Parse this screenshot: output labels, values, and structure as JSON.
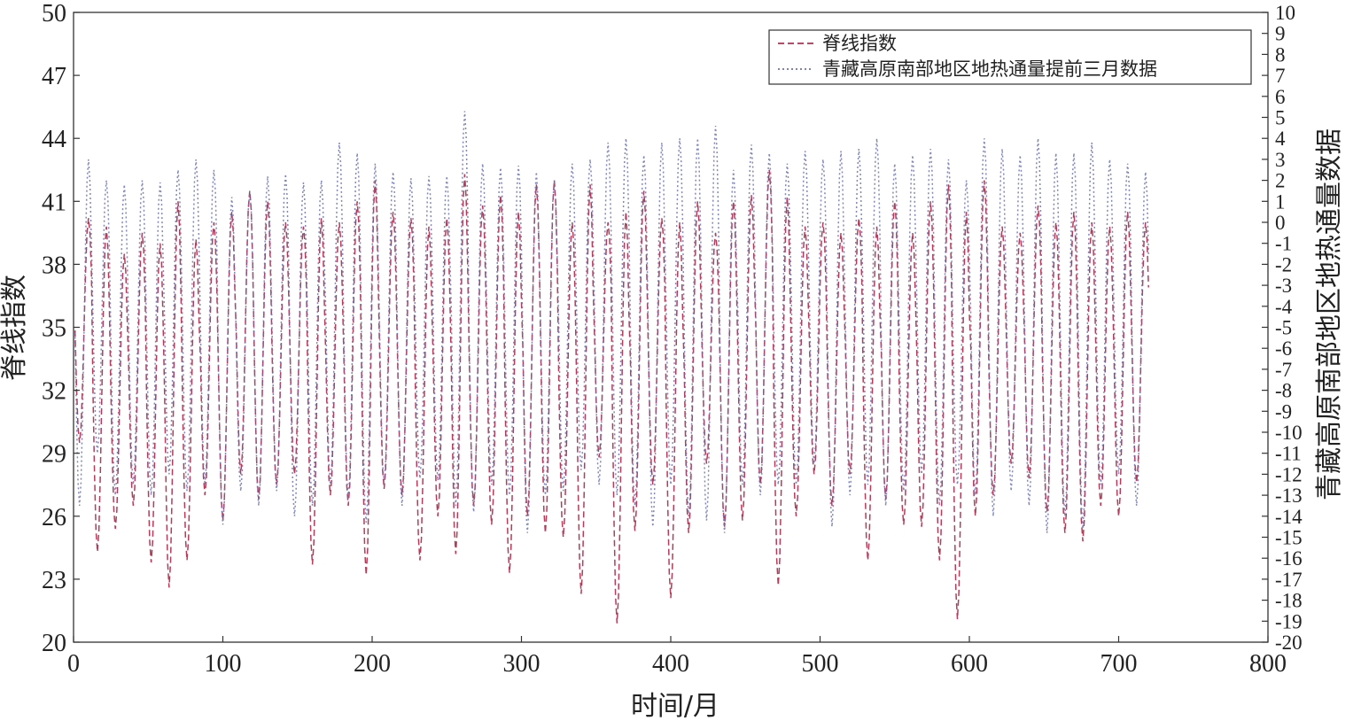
{
  "chart_data": {
    "type": "line",
    "title": "",
    "xlabel": "时间/月",
    "ylabel_left": "脊线指数",
    "ylabel_right": "青藏高原南部地区地热通量数据",
    "xlim": [
      0,
      800
    ],
    "ylim_left": [
      20,
      50
    ],
    "ylim_right": [
      -20,
      10
    ],
    "x_ticks": [
      "0",
      "100",
      "200",
      "300",
      "400",
      "500",
      "600",
      "700",
      "800"
    ],
    "y_left_ticks": [
      "20",
      "23",
      "26",
      "29",
      "32",
      "35",
      "38",
      "41",
      "44",
      "47",
      "50"
    ],
    "y_right_ticks": [
      "-20",
      "-19",
      "-18",
      "-17",
      "-16",
      "-15",
      "-14",
      "-13",
      "-12",
      "-11",
      "-10",
      "-9",
      "-8",
      "-7",
      "-6",
      "-5",
      "-4",
      "-3",
      "-2",
      "-1",
      "0",
      "1",
      "2",
      "3",
      "4",
      "5",
      "6",
      "7",
      "8",
      "9",
      "10"
    ],
    "grid": false,
    "legend_position": "top-right",
    "series": [
      {
        "name": "脊线指数",
        "axis": "left",
        "style": "dashed",
        "color": "#b03050",
        "x_start": 1,
        "x_step": 1,
        "n_points": 720,
        "period": 12,
        "peaks": [
          40.2,
          39.8,
          38.5,
          39.5,
          39.0,
          41.0,
          39.2,
          40.0,
          40.5,
          41.5,
          41.0,
          40.0,
          39.8,
          40.2,
          40.0,
          41.0,
          42.0,
          40.5,
          40.2,
          39.8,
          40.2,
          42.3,
          40.8,
          41.3,
          40.5,
          41.8,
          42.0,
          40.0,
          41.8,
          40.0,
          40.5,
          41.5,
          40.2,
          40.0,
          41.0,
          39.5,
          41.0,
          41.3,
          42.5,
          41.2,
          39.8,
          40.0,
          39.5,
          40.2,
          39.8,
          41.0,
          39.5,
          41.0,
          41.8,
          40.5,
          42.0,
          39.8,
          39.5,
          40.8,
          40.0,
          40.5,
          40.0,
          39.8,
          40.5,
          40.0,
          39.2,
          39.8,
          41.0,
          40.0,
          40.8,
          40.5,
          41.5,
          41.0,
          40.5,
          40.0
        ],
        "troughs": [
          29.5,
          24.3,
          25.4,
          26.5,
          23.8,
          22.6,
          23.9,
          27.0,
          25.8,
          28.0,
          26.8,
          27.5,
          28.0,
          23.7,
          27.0,
          26.5,
          23.2,
          27.3,
          27.0,
          23.9,
          26.0,
          24.2,
          26.5,
          25.6,
          23.3,
          26.0,
          25.2,
          25.0,
          22.3,
          28.8,
          20.9,
          25.3,
          27.5,
          22.1,
          25.2,
          28.5,
          25.5,
          25.8,
          27.5,
          22.7,
          26.0,
          28.0,
          26.5,
          28.0,
          23.9,
          26.8,
          25.6,
          25.5,
          23.9,
          21.1,
          26.0,
          27.0,
          28.5,
          27.8,
          26.2,
          25.2,
          24.8,
          26.5,
          26.0,
          27.6,
          26.2,
          26.8,
          26.0,
          24.5,
          26.8,
          25.8,
          22.9,
          22.6,
          27.2,
          25.3
        ]
      },
      {
        "name": "青藏高原南部地区地热通量提前三月数据",
        "axis": "right",
        "style": "dotted",
        "color": "#6a72b0",
        "x_start": 1,
        "x_step": 1,
        "n_points": 720,
        "period": 12,
        "peaks": [
          3.0,
          2.0,
          1.8,
          2.0,
          1.9,
          2.5,
          3.0,
          2.5,
          1.2,
          1.5,
          2.2,
          2.3,
          1.9,
          2.0,
          3.8,
          3.3,
          2.8,
          2.4,
          2.1,
          2.2,
          2.2,
          5.3,
          2.8,
          2.6,
          2.7,
          2.4,
          2.0,
          2.8,
          3.0,
          3.8,
          4.0,
          3.2,
          3.8,
          4.0,
          4.0,
          4.6,
          2.5,
          3.7,
          3.3,
          2.8,
          3.4,
          3.0,
          3.4,
          3.5,
          4.0,
          2.8,
          3.2,
          3.5,
          3.0,
          2.0,
          4.0,
          3.5,
          3.2,
          4.0,
          3.3,
          3.3,
          3.8,
          3.0,
          2.8,
          2.4,
          2.0,
          2.5,
          2.3,
          2.2,
          2.8,
          2.5,
          3.3,
          2.0,
          1.5,
          2.1
        ],
        "troughs": [
          -13.5,
          -11.0,
          -13.0,
          -12.5,
          -13.0,
          -12.0,
          -12.8,
          -12.5,
          -14.4,
          -12.8,
          -13.5,
          -12.8,
          -14.0,
          -13.5,
          -12.5,
          -13.2,
          -14.3,
          -12.5,
          -13.5,
          -12.2,
          -12.3,
          -13.5,
          -13.8,
          -12.5,
          -13.0,
          -14.8,
          -13.0,
          -12.8,
          -11.8,
          -12.5,
          -13.0,
          -13.5,
          -14.5,
          -12.5,
          -14.0,
          -14.2,
          -14.8,
          -12.5,
          -13.0,
          -12.5,
          -12.5,
          -11.5,
          -14.5,
          -13.0,
          -12.5,
          -13.5,
          -12.8,
          -12.0,
          -13.5,
          -12.5,
          -13.0,
          -14.0,
          -12.8,
          -13.5,
          -14.8,
          -14.0,
          -14.6,
          -12.5,
          -12.0,
          -13.5,
          -12.5,
          -13.0,
          -14.0,
          -13.2,
          -12.8,
          -13.5,
          -11.5,
          -13.0,
          -14.8,
          -13.0
        ]
      }
    ]
  }
}
